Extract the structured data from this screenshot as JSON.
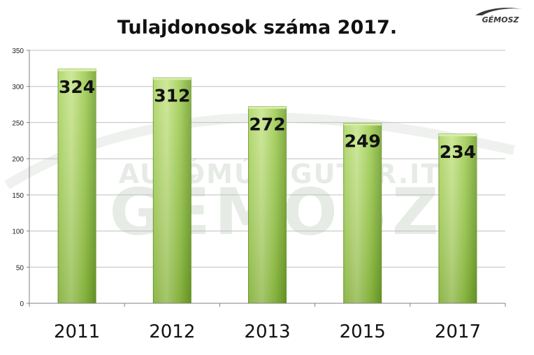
{
  "logo": {
    "text": "GÉMOSZ"
  },
  "watermark": {
    "main": "GÉMOSZ",
    "sub": "AUTÓMÚVIGUTAR.IT"
  },
  "colors": {
    "bar_light": "#c9e58a",
    "bar_mid": "#8cbd3a",
    "bar_dark": "#5f8f1f",
    "grid": "#bfbfbf",
    "axis": "#808080"
  },
  "chart_data": {
    "type": "bar",
    "title": "Tulajdonosok száma 2017.",
    "xlabel": "",
    "ylabel": "",
    "categories": [
      "2011",
      "2012",
      "2013",
      "2015",
      "2017"
    ],
    "values": [
      324,
      312,
      272,
      249,
      234
    ],
    "data_labels": [
      "324",
      "312",
      "272",
      "249",
      "234"
    ],
    "ylim": [
      0,
      350
    ],
    "yticks": [
      0,
      50,
      100,
      150,
      200,
      250,
      300,
      350
    ],
    "grid": true,
    "legend": "none"
  }
}
